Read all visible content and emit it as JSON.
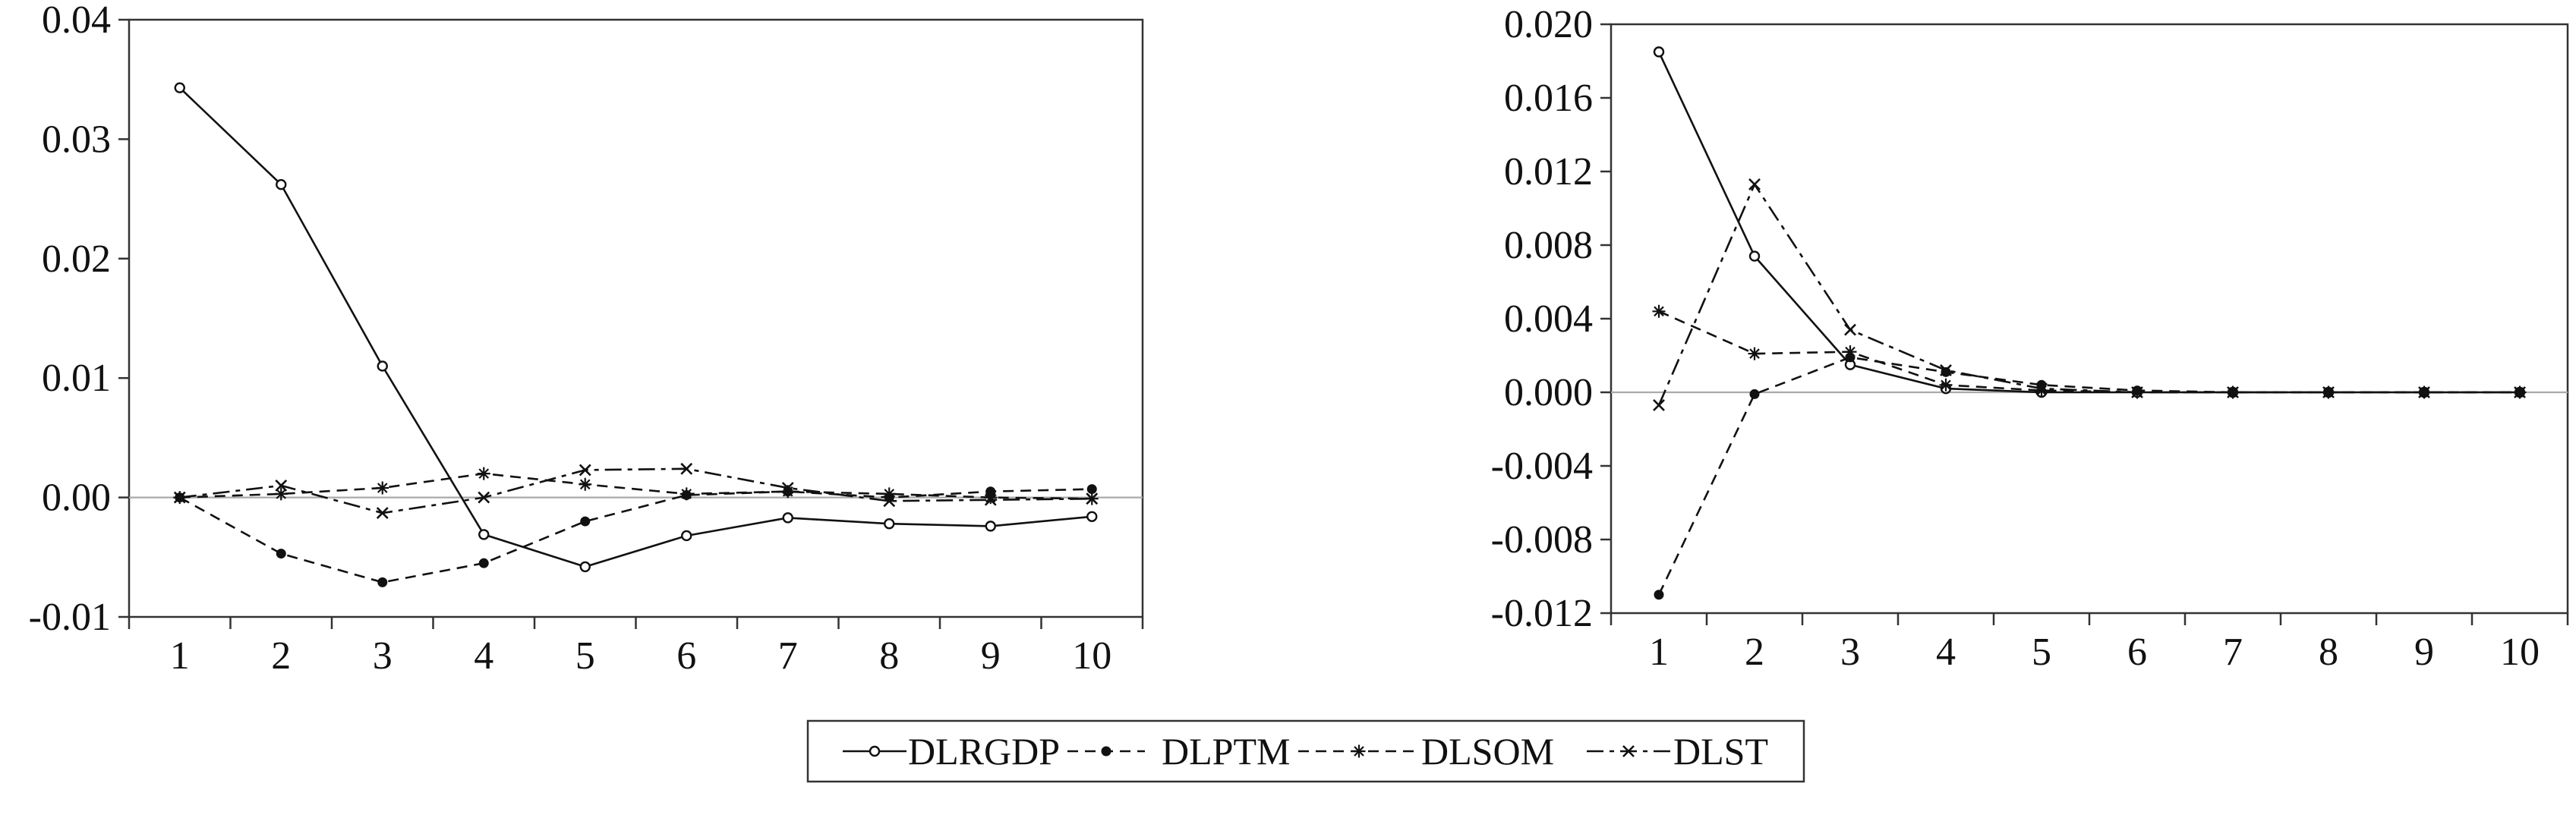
{
  "chart_data": [
    {
      "type": "line",
      "categories": [
        "1",
        "2",
        "3",
        "4",
        "5",
        "6",
        "7",
        "8",
        "9",
        "10"
      ],
      "ylim": [
        -0.01,
        0.04
      ],
      "yticks": [
        "0.04",
        "0.03",
        "0.02",
        "0.01",
        "0.00",
        "-0.01"
      ],
      "ytick_values": [
        0.04,
        0.03,
        0.02,
        0.01,
        0.0,
        -0.01
      ],
      "zero_line": true,
      "series": [
        {
          "name": "DLRGDP",
          "values": [
            0.0343,
            0.0262,
            0.011,
            -0.0031,
            -0.0058,
            -0.0032,
            -0.0017,
            -0.0022,
            -0.0024,
            -0.0016
          ]
        },
        {
          "name": "DLPTM",
          "values": [
            0.0,
            -0.0047,
            -0.0071,
            -0.0055,
            -0.002,
            0.0002,
            0.0005,
            0.0,
            0.0005,
            0.0007
          ]
        },
        {
          "name": "DLSOM",
          "values": [
            0.0,
            0.0003,
            0.0008,
            0.002,
            0.0011,
            0.0003,
            0.0005,
            0.0003,
            0.0,
            -0.0001
          ]
        },
        {
          "name": "DLST",
          "values": [
            0.0,
            0.001,
            -0.0013,
            0.0,
            0.0023,
            0.0024,
            0.0008,
            -0.0003,
            -0.0002,
            -0.0001
          ]
        }
      ]
    },
    {
      "type": "line",
      "categories": [
        "1",
        "2",
        "3",
        "4",
        "5",
        "6",
        "7",
        "8",
        "9",
        "10"
      ],
      "ylim": [
        -0.012,
        0.02
      ],
      "yticks": [
        "0.020",
        "0.016",
        "0.012",
        "0.008",
        "0.004",
        "0.000",
        "-0.004",
        "-0.008",
        "-0.012"
      ],
      "ytick_values": [
        0.02,
        0.016,
        0.012,
        0.008,
        0.004,
        0.0,
        -0.004,
        -0.008,
        -0.012
      ],
      "zero_line": true,
      "series": [
        {
          "name": "DLRGDP",
          "values": [
            0.0185,
            0.0074,
            0.0015,
            0.0002,
            0.0,
            0.0,
            0.0,
            0.0,
            0.0,
            0.0
          ]
        },
        {
          "name": "DLPTM",
          "values": [
            -0.011,
            -0.0001,
            0.0019,
            0.0011,
            0.0004,
            0.0001,
            0.0,
            0.0,
            0.0,
            0.0
          ]
        },
        {
          "name": "DLSOM",
          "values": [
            0.0044,
            0.0021,
            0.0022,
            0.0004,
            0.0001,
            0.0,
            0.0,
            0.0,
            0.0,
            0.0
          ]
        },
        {
          "name": "DLST",
          "values": [
            -0.0007,
            0.0113,
            0.0034,
            0.0012,
            0.0002,
            0.0,
            0.0,
            0.0,
            0.0,
            0.0
          ]
        }
      ]
    }
  ],
  "legend": {
    "placement": "bottom-center",
    "items": [
      {
        "label": "DLRGDP",
        "marker": "open-circle",
        "dash": "solid"
      },
      {
        "label": "DLPTM",
        "marker": "filled-circle",
        "dash": "dashed"
      },
      {
        "label": "DLSOM",
        "marker": "asterisk",
        "dash": "dashed"
      },
      {
        "label": "DLST",
        "marker": "cross",
        "dash": "dash-dot"
      }
    ]
  },
  "colors": {
    "line": "#111111",
    "zero_line": "#aaaaaa",
    "frame": "#333333",
    "background": "#ffffff"
  }
}
